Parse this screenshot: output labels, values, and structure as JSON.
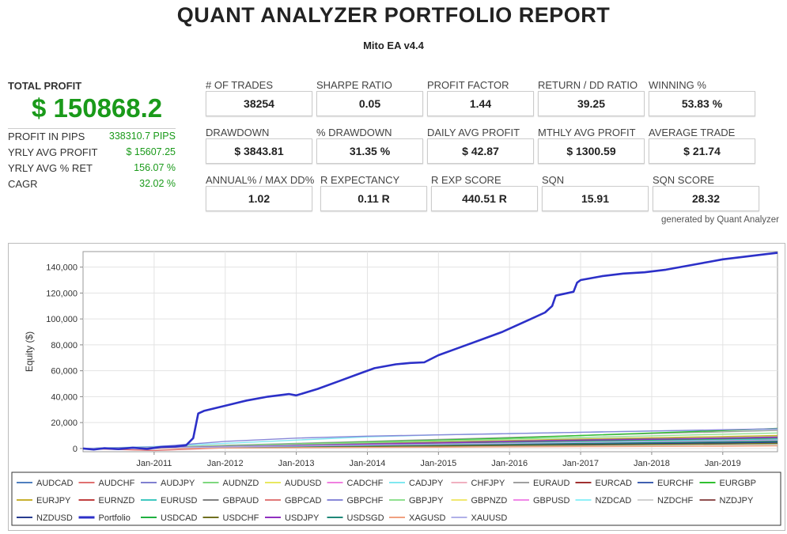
{
  "header": {
    "title": "QUANT ANALYZER PORTFOLIO REPORT",
    "subtitle": "Mito EA v4.4"
  },
  "total_profit": {
    "label": "TOTAL PROFIT",
    "value": "$ 150868.2"
  },
  "summary": [
    {
      "label": "PROFIT IN PIPS",
      "value": "338310.7 PIPS"
    },
    {
      "label": "YRLY AVG PROFIT",
      "value": "$ 15607.25"
    },
    {
      "label": "YRLY AVG % RET",
      "value": "156.07 %"
    },
    {
      "label": "CAGR",
      "value": "32.02 %"
    }
  ],
  "metrics": [
    {
      "label": "# OF TRADES",
      "value": "38254"
    },
    {
      "label": "SHARPE RATIO",
      "value": "0.05"
    },
    {
      "label": "PROFIT FACTOR",
      "value": "1.44"
    },
    {
      "label": "RETURN / DD RATIO",
      "value": "39.25"
    },
    {
      "label": "WINNING %",
      "value": "53.83 %"
    },
    {
      "label": "DRAWDOWN",
      "value": "$ 3843.81"
    },
    {
      "label": "% DRAWDOWN",
      "value": "31.35 %"
    },
    {
      "label": "DAILY AVG PROFIT",
      "value": "$ 42.87"
    },
    {
      "label": "MTHLY AVG PROFIT",
      "value": "$ 1300.59"
    },
    {
      "label": "AVERAGE TRADE",
      "value": "$ 21.74"
    },
    {
      "label": "ANNUAL% / MAX DD%",
      "value": "1.02"
    },
    {
      "label": "R EXPECTANCY",
      "value": "0.11 R"
    },
    {
      "label": "R EXP SCORE",
      "value": "440.51 R"
    },
    {
      "label": "SQN",
      "value": "15.91"
    },
    {
      "label": "SQN SCORE",
      "value": "28.32"
    }
  ],
  "generated_by": "generated by Quant Analyzer",
  "chart_data": {
    "type": "line",
    "ylabel": "Equity ($)",
    "xlabel": "",
    "ylim": [
      -2500,
      152000
    ],
    "xlim": [
      2010.0,
      2019.77
    ],
    "grid": true,
    "legend_placement": "bottom",
    "yticks": [
      0,
      20000,
      40000,
      60000,
      80000,
      100000,
      120000,
      140000
    ],
    "ytick_labels": [
      "0",
      "20,000",
      "40,000",
      "60,000",
      "80,000",
      "100,000",
      "120,000",
      "140,000"
    ],
    "xticks": [
      2011,
      2012,
      2013,
      2014,
      2015,
      2016,
      2017,
      2018,
      2019
    ],
    "xtick_labels": [
      "Jan-2011",
      "Jan-2012",
      "Jan-2013",
      "Jan-2014",
      "Jan-2015",
      "Jan-2016",
      "Jan-2017",
      "Jan-2018",
      "Jan-2019"
    ],
    "series": [
      {
        "name": "AUDCAD",
        "color": "#4f7fbf",
        "x": [
          2010.0,
          2011.0,
          2012.0,
          2013.0,
          2014.0,
          2015.0,
          2016.0,
          2017.0,
          2018.0,
          2019.0,
          2019.77
        ],
        "y": [
          0,
          300,
          800,
          1300,
          1800,
          2300,
          2900,
          3500,
          4000,
          4500,
          5000
        ]
      },
      {
        "name": "AUDCHF",
        "color": "#e07070",
        "x": [
          2010.0,
          2011.0,
          2012.0,
          2013.0,
          2014.0,
          2015.0,
          2016.0,
          2017.0,
          2018.0,
          2019.0,
          2019.77
        ],
        "y": [
          0,
          -1500,
          500,
          1000,
          1500,
          2000,
          2500,
          3000,
          3300,
          3600,
          4000
        ]
      },
      {
        "name": "AUDJPY",
        "color": "#8080d0",
        "x": [
          2010.0,
          2011.0,
          2012.0,
          2013.0,
          2014.0,
          2015.0,
          2016.0,
          2017.0,
          2018.0,
          2019.0,
          2019.77
        ],
        "y": [
          0,
          800,
          1800,
          2800,
          3500,
          4200,
          5000,
          5800,
          6300,
          6800,
          7200
        ]
      },
      {
        "name": "AUDNZD",
        "color": "#7ed87e",
        "x": [
          2010.0,
          2011.0,
          2012.0,
          2013.0,
          2014.0,
          2015.0,
          2016.0,
          2017.0,
          2018.0,
          2019.0,
          2019.77
        ],
        "y": [
          0,
          600,
          1400,
          2200,
          3000,
          3800,
          4600,
          5400,
          6000,
          6500,
          7000
        ]
      },
      {
        "name": "AUDUSD",
        "color": "#e8e860",
        "x": [
          2010.0,
          2011.0,
          2012.0,
          2013.0,
          2014.0,
          2015.0,
          2016.0,
          2017.0,
          2018.0,
          2019.0,
          2019.77
        ],
        "y": [
          0,
          200,
          500,
          800,
          1100,
          1400,
          1700,
          2000,
          2300,
          2600,
          2900
        ]
      },
      {
        "name": "CADCHF",
        "color": "#f080e0",
        "x": [
          2010.0,
          2011.0,
          2012.0,
          2013.0,
          2014.0,
          2015.0,
          2016.0,
          2017.0,
          2018.0,
          2019.0,
          2019.77
        ],
        "y": [
          0,
          400,
          900,
          1400,
          1900,
          2400,
          2900,
          3400,
          3800,
          4200,
          4600
        ]
      },
      {
        "name": "CADJPY",
        "color": "#80e8f0",
        "x": [
          2010.0,
          2011.0,
          2012.0,
          2013.0,
          2014.0,
          2015.0,
          2016.0,
          2017.0,
          2018.0,
          2019.0,
          2019.77
        ],
        "y": [
          0,
          1500,
          4000,
          6500,
          9000,
          10500,
          11500,
          12500,
          13500,
          14200,
          15000
        ]
      },
      {
        "name": "CHFJPY",
        "color": "#f0b0c0",
        "x": [
          2010.0,
          2011.0,
          2012.0,
          2013.0,
          2014.0,
          2015.0,
          2016.0,
          2017.0,
          2018.0,
          2019.0,
          2019.77
        ],
        "y": [
          0,
          500,
          1200,
          2000,
          2700,
          3400,
          4100,
          4800,
          5400,
          6000,
          6500
        ]
      },
      {
        "name": "EURAUD",
        "color": "#a0a0a0",
        "x": [
          2010.0,
          2011.0,
          2012.0,
          2013.0,
          2014.0,
          2015.0,
          2016.0,
          2017.0,
          2018.0,
          2019.0,
          2019.77
        ],
        "y": [
          0,
          900,
          2500,
          4000,
          5500,
          7000,
          8500,
          10000,
          11500,
          12800,
          14000
        ]
      },
      {
        "name": "EURCAD",
        "color": "#a03030",
        "x": [
          2010.0,
          2011.0,
          2012.0,
          2013.0,
          2014.0,
          2015.0,
          2016.0,
          2017.0,
          2018.0,
          2019.0,
          2019.77
        ],
        "y": [
          0,
          400,
          1100,
          1900,
          2700,
          3500,
          4300,
          5100,
          5700,
          6300,
          6900
        ]
      },
      {
        "name": "EURCHF",
        "color": "#4060b0",
        "x": [
          2010.0,
          2011.0,
          2012.0,
          2013.0,
          2014.0,
          2015.0,
          2016.0,
          2017.0,
          2018.0,
          2019.0,
          2019.77
        ],
        "y": [
          0,
          300,
          800,
          1300,
          1800,
          2300,
          2800,
          3300,
          3700,
          4100,
          4500
        ]
      },
      {
        "name": "EURGBP",
        "color": "#30c030",
        "x": [
          2010.0,
          2011.0,
          2012.0,
          2013.0,
          2014.0,
          2015.0,
          2016.0,
          2017.0,
          2018.0,
          2019.0,
          2019.77
        ],
        "y": [
          0,
          800,
          2000,
          3500,
          5000,
          6500,
          8000,
          10000,
          12000,
          13800,
          15500
        ]
      },
      {
        "name": "EURJPY",
        "color": "#c8b030",
        "x": [
          2010.0,
          2011.0,
          2012.0,
          2013.0,
          2014.0,
          2015.0,
          2016.0,
          2017.0,
          2018.0,
          2019.0,
          2019.77
        ],
        "y": [
          0,
          700,
          1800,
          2900,
          4000,
          5100,
          6200,
          7300,
          8300,
          9200,
          10000
        ]
      },
      {
        "name": "EURNZD",
        "color": "#c04040",
        "x": [
          2010.0,
          2011.0,
          2012.0,
          2013.0,
          2014.0,
          2015.0,
          2016.0,
          2017.0,
          2018.0,
          2019.0,
          2019.77
        ],
        "y": [
          0,
          600,
          1500,
          2400,
          3300,
          4200,
          5100,
          6000,
          6800,
          7600,
          8300
        ]
      },
      {
        "name": "EURUSD",
        "color": "#40c8c0",
        "x": [
          2010.0,
          2011.0,
          2012.0,
          2013.0,
          2014.0,
          2015.0,
          2016.0,
          2017.0,
          2018.0,
          2019.0,
          2019.77
        ],
        "y": [
          0,
          500,
          1300,
          2100,
          2900,
          3700,
          4500,
          5300,
          6000,
          6700,
          7400
        ]
      },
      {
        "name": "GBPAUD",
        "color": "#808080",
        "x": [
          2010.0,
          2011.0,
          2012.0,
          2013.0,
          2014.0,
          2015.0,
          2016.0,
          2017.0,
          2018.0,
          2019.0,
          2019.77
        ],
        "y": [
          0,
          700,
          1700,
          2700,
          3700,
          4700,
          5700,
          6700,
          7500,
          8200,
          9000
        ]
      },
      {
        "name": "GBPCAD",
        "color": "#e07878",
        "x": [
          2010.0,
          2011.0,
          2012.0,
          2013.0,
          2014.0,
          2015.0,
          2016.0,
          2017.0,
          2018.0,
          2019.0,
          2019.77
        ],
        "y": [
          0,
          600,
          1500,
          2400,
          3300,
          4200,
          5100,
          6000,
          6800,
          7600,
          8400
        ]
      },
      {
        "name": "GBPCHF",
        "color": "#8888d8",
        "x": [
          2010.0,
          2011.0,
          2012.0,
          2013.0,
          2014.0,
          2015.0,
          2016.0,
          2017.0,
          2018.0,
          2019.0,
          2019.77
        ],
        "y": [
          0,
          1200,
          5500,
          8000,
          9500,
          10500,
          11500,
          12500,
          13500,
          14500,
          15200
        ]
      },
      {
        "name": "GBPJPY",
        "color": "#90e090",
        "x": [
          2010.0,
          2011.0,
          2012.0,
          2013.0,
          2014.0,
          2015.0,
          2016.0,
          2017.0,
          2018.0,
          2019.0,
          2019.77
        ],
        "y": [
          0,
          800,
          2000,
          3300,
          4600,
          5900,
          7200,
          8500,
          9800,
          11000,
          12000
        ]
      },
      {
        "name": "GBPNZD",
        "color": "#f0e870",
        "x": [
          2010.0,
          2011.0,
          2012.0,
          2013.0,
          2014.0,
          2015.0,
          2016.0,
          2017.0,
          2018.0,
          2019.0,
          2019.77
        ],
        "y": [
          0,
          400,
          1000,
          1600,
          2200,
          2800,
          3400,
          4000,
          4500,
          5000,
          5500
        ]
      },
      {
        "name": "GBPUSD",
        "color": "#f088e8",
        "x": [
          2010.0,
          2011.0,
          2012.0,
          2013.0,
          2014.0,
          2015.0,
          2016.0,
          2017.0,
          2018.0,
          2019.0,
          2019.77
        ],
        "y": [
          0,
          500,
          1200,
          1900,
          2600,
          3300,
          4000,
          4700,
          5300,
          5900,
          6500
        ]
      },
      {
        "name": "NZDCAD",
        "color": "#90f0f8",
        "x": [
          2010.0,
          2011.0,
          2012.0,
          2013.0,
          2014.0,
          2015.0,
          2016.0,
          2017.0,
          2018.0,
          2019.0,
          2019.77
        ],
        "y": [
          0,
          300,
          700,
          1100,
          1500,
          1900,
          2300,
          2700,
          3100,
          3500,
          3900
        ]
      },
      {
        "name": "NZDCHF",
        "color": "#d0d0d0",
        "x": [
          2010.0,
          2011.0,
          2012.0,
          2013.0,
          2014.0,
          2015.0,
          2016.0,
          2017.0,
          2018.0,
          2019.0,
          2019.77
        ],
        "y": [
          0,
          200,
          500,
          800,
          1100,
          1400,
          1700,
          2000,
          2300,
          2600,
          2900
        ]
      },
      {
        "name": "NZDJPY",
        "color": "#905050",
        "x": [
          2010.0,
          2011.0,
          2012.0,
          2013.0,
          2014.0,
          2015.0,
          2016.0,
          2017.0,
          2018.0,
          2019.0,
          2019.77
        ],
        "y": [
          0,
          400,
          1000,
          1700,
          2400,
          3100,
          3800,
          4500,
          5100,
          5700,
          6200
        ]
      },
      {
        "name": "NZDUSD",
        "color": "#283c90",
        "x": [
          2010.0,
          2011.0,
          2012.0,
          2013.0,
          2014.0,
          2015.0,
          2016.0,
          2017.0,
          2018.0,
          2019.0,
          2019.77
        ],
        "y": [
          0,
          300,
          800,
          1300,
          1800,
          2300,
          2800,
          3300,
          3800,
          4300,
          4800
        ]
      },
      {
        "name": "Portfolio",
        "color": "#2c30c8",
        "x": [
          2010.0,
          2010.15,
          2010.3,
          2010.5,
          2010.7,
          2010.9,
          2011.1,
          2011.3,
          2011.45,
          2011.55,
          2011.62,
          2011.7,
          2012.0,
          2012.3,
          2012.6,
          2012.9,
          2013.0,
          2013.3,
          2013.6,
          2013.9,
          2014.1,
          2014.4,
          2014.6,
          2014.8,
          2015.0,
          2015.3,
          2015.6,
          2015.9,
          2016.1,
          2016.3,
          2016.5,
          2016.6,
          2016.65,
          2016.9,
          2016.95,
          2017.0,
          2017.3,
          2017.6,
          2017.9,
          2018.2,
          2018.5,
          2018.8,
          2019.0,
          2019.3,
          2019.6,
          2019.77
        ],
        "y": [
          0,
          -800,
          200,
          -500,
          600,
          -300,
          1200,
          1500,
          2500,
          8000,
          27000,
          29000,
          33000,
          37000,
          40000,
          42000,
          41000,
          46000,
          52000,
          58000,
          62000,
          65000,
          66000,
          66500,
          72000,
          78000,
          84000,
          90000,
          95000,
          100000,
          105000,
          110000,
          118000,
          121000,
          128000,
          130000,
          133000,
          135000,
          136000,
          138000,
          141000,
          144000,
          146000,
          148000,
          150000,
          151000
        ]
      },
      {
        "name": "USDCAD",
        "color": "#20b040",
        "x": [
          2010.0,
          2011.0,
          2012.0,
          2013.0,
          2014.0,
          2015.0,
          2016.0,
          2017.0,
          2018.0,
          2019.0,
          2019.77
        ],
        "y": [
          0,
          500,
          1400,
          2300,
          3200,
          4100,
          5000,
          5900,
          6700,
          7500,
          8200
        ]
      },
      {
        "name": "USDCHF",
        "color": "#707020",
        "x": [
          2010.0,
          2011.0,
          2012.0,
          2013.0,
          2014.0,
          2015.0,
          2016.0,
          2017.0,
          2018.0,
          2019.0,
          2019.77
        ],
        "y": [
          0,
          300,
          700,
          1100,
          1500,
          1900,
          2300,
          2700,
          3100,
          3500,
          3900
        ]
      },
      {
        "name": "USDJPY",
        "color": "#9030c0",
        "x": [
          2010.0,
          2011.0,
          2012.0,
          2013.0,
          2014.0,
          2015.0,
          2016.0,
          2017.0,
          2018.0,
          2019.0,
          2019.77
        ],
        "y": [
          0,
          600,
          1500,
          2400,
          3300,
          4300,
          5300,
          6300,
          7100,
          7800,
          8500
        ]
      },
      {
        "name": "USDSGD",
        "color": "#208878",
        "x": [
          2010.0,
          2011.0,
          2012.0,
          2013.0,
          2014.0,
          2015.0,
          2016.0,
          2017.0,
          2018.0,
          2019.0,
          2019.77
        ],
        "y": [
          0,
          400,
          1000,
          1600,
          2200,
          2800,
          3400,
          4000,
          4500,
          5000,
          5500
        ]
      },
      {
        "name": "XAGUSD",
        "color": "#f0a080",
        "x": [
          2010.0,
          2011.0,
          2012.0,
          2013.0,
          2014.0,
          2015.0,
          2016.0,
          2017.0,
          2018.0,
          2019.0,
          2019.77
        ],
        "y": [
          0,
          200,
          400,
          600,
          800,
          1000,
          1200,
          1400,
          1600,
          1800,
          2000
        ]
      },
      {
        "name": "XAUUSD",
        "color": "#b0b0e8",
        "x": [
          2010.0,
          2011.0,
          2012.0,
          2013.0,
          2014.0,
          2015.0,
          2016.0,
          2017.0,
          2018.0,
          2019.0,
          2019.77
        ],
        "y": [
          0,
          500,
          1200,
          1900,
          2600,
          3300,
          4000,
          4700,
          5300,
          5900,
          6500
        ]
      }
    ]
  }
}
